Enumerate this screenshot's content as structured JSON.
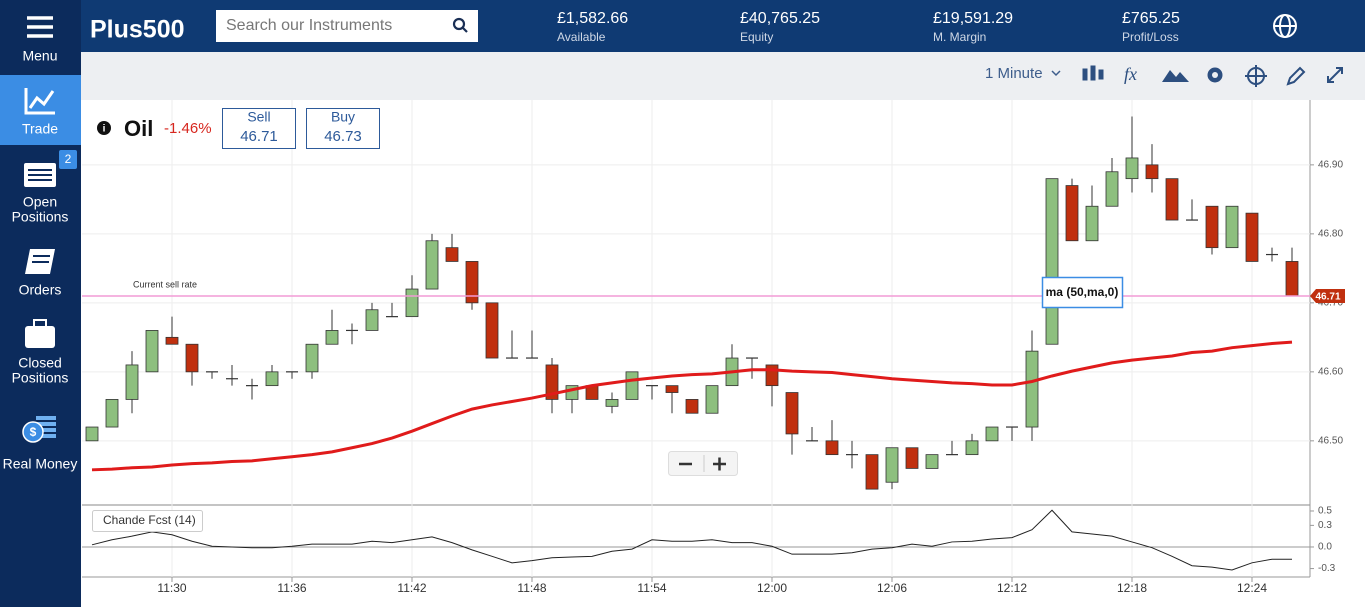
{
  "sidebar": {
    "items": [
      {
        "label": [
          "Menu"
        ]
      },
      {
        "label": [
          "Trade"
        ]
      },
      {
        "label": [
          "Open",
          "Positions"
        ],
        "badge": 2
      },
      {
        "label": [
          "Orders"
        ]
      },
      {
        "label": [
          "Closed",
          "Positions"
        ]
      },
      {
        "label": [
          "Real Money"
        ]
      }
    ]
  },
  "header": {
    "logo": "Plus500",
    "search_placeholder": "Search our Instruments",
    "stats": [
      {
        "value": "£1,582.66",
        "label": "Available"
      },
      {
        "value": "£40,765.25",
        "label": "Equity"
      },
      {
        "value": "£19,591.29",
        "label": "M. Margin"
      },
      {
        "value": "£765.25",
        "label": "Profit/Loss"
      }
    ]
  },
  "toolbar": {
    "timeframe": "1 Minute"
  },
  "instrument": {
    "name": "Oil",
    "change": "-1.46%",
    "sell": {
      "label": "Sell",
      "price": 46.71
    },
    "buy": {
      "label": "Buy",
      "price": 46.73
    }
  },
  "chart_data": [
    {
      "type": "candlestick",
      "categories": [
        null,
        null,
        null,
        null,
        "11:30",
        null,
        null,
        null,
        null,
        null,
        "11:36",
        null,
        null,
        null,
        null,
        null,
        "11:42",
        null,
        null,
        null,
        null,
        null,
        "11:48",
        null,
        null,
        null,
        null,
        null,
        "11:54",
        null,
        null,
        null,
        null,
        null,
        "12:00",
        null,
        null,
        null,
        null,
        null,
        "12:06",
        null,
        null,
        null,
        null,
        null,
        "12:12",
        null,
        null,
        null,
        null,
        null,
        "12:18",
        null,
        null,
        null,
        null,
        null,
        "12:24",
        null,
        null
      ],
      "open": [
        46.5,
        46.52,
        46.56,
        46.6,
        46.65,
        46.64,
        46.6,
        46.59,
        46.58,
        46.58,
        46.6,
        46.6,
        46.64,
        46.66,
        46.66,
        46.68,
        46.68,
        46.72,
        46.78,
        46.76,
        46.7,
        46.62,
        46.62,
        46.61,
        46.56,
        46.58,
        46.55,
        46.56,
        46.58,
        46.58,
        46.56,
        46.54,
        46.58,
        46.62,
        46.61,
        46.57,
        46.5,
        46.5,
        46.48,
        46.48,
        46.44,
        46.49,
        46.46,
        46.48,
        46.48,
        46.5,
        46.52,
        46.52,
        46.64,
        46.87,
        46.79,
        46.84,
        46.88,
        46.9,
        46.88,
        46.82,
        46.84,
        46.78,
        46.83,
        46.77,
        46.76
      ],
      "high": [
        46.52,
        46.56,
        46.63,
        46.66,
        46.68,
        46.64,
        46.6,
        46.61,
        46.59,
        46.61,
        46.6,
        46.64,
        46.69,
        46.67,
        46.7,
        46.7,
        46.74,
        46.8,
        46.8,
        46.76,
        46.7,
        46.66,
        46.66,
        46.62,
        46.58,
        46.58,
        46.57,
        46.6,
        46.58,
        46.58,
        46.56,
        46.58,
        46.64,
        46.62,
        46.61,
        46.57,
        46.52,
        46.53,
        46.5,
        46.48,
        46.49,
        46.49,
        46.48,
        46.5,
        46.51,
        46.52,
        46.52,
        46.66,
        46.88,
        46.88,
        46.87,
        46.91,
        46.97,
        46.93,
        46.88,
        46.85,
        46.84,
        46.84,
        46.83,
        46.78,
        46.78
      ],
      "low": [
        46.5,
        46.52,
        46.54,
        46.6,
        46.64,
        46.58,
        46.59,
        46.58,
        46.56,
        46.58,
        46.59,
        46.59,
        46.64,
        46.64,
        46.66,
        46.68,
        46.68,
        46.72,
        46.76,
        46.69,
        46.62,
        46.62,
        46.62,
        46.54,
        46.54,
        46.56,
        46.54,
        46.56,
        46.56,
        46.54,
        46.54,
        46.54,
        46.58,
        46.59,
        46.55,
        46.48,
        46.5,
        46.48,
        46.46,
        46.43,
        46.43,
        46.46,
        46.46,
        46.48,
        46.48,
        46.5,
        46.5,
        46.5,
        46.64,
        46.79,
        46.79,
        46.84,
        46.86,
        46.86,
        46.82,
        46.82,
        46.77,
        46.78,
        46.76,
        46.76,
        46.71
      ],
      "close": [
        46.52,
        46.56,
        46.61,
        46.66,
        46.64,
        46.6,
        46.6,
        46.59,
        46.58,
        46.6,
        46.6,
        46.64,
        46.66,
        46.66,
        46.69,
        46.68,
        46.72,
        46.79,
        46.76,
        46.7,
        46.62,
        46.62,
        46.62,
        46.56,
        46.58,
        46.56,
        46.56,
        46.6,
        46.58,
        46.57,
        46.54,
        46.58,
        46.62,
        46.62,
        46.58,
        46.51,
        46.5,
        46.48,
        46.48,
        46.43,
        46.49,
        46.46,
        46.48,
        46.48,
        46.5,
        46.52,
        46.52,
        46.63,
        46.88,
        46.79,
        46.84,
        46.89,
        46.91,
        46.88,
        46.82,
        46.82,
        46.78,
        46.84,
        46.76,
        46.77,
        46.71
      ],
      "up_color": "#8dbf7e",
      "down_color": "#c0300f",
      "overlays": [
        {
          "name": "ma (50,ma,0)",
          "color": "#e01b1b",
          "values": [
            46.458,
            46.459,
            46.461,
            46.462,
            46.465,
            46.467,
            46.468,
            46.47,
            46.471,
            46.474,
            46.477,
            46.48,
            46.484,
            46.49,
            46.496,
            46.504,
            46.514,
            46.525,
            46.536,
            46.546,
            46.552,
            46.557,
            46.562,
            46.568,
            46.574,
            46.58,
            46.584,
            46.588,
            46.591,
            46.594,
            46.596,
            46.597,
            46.6,
            46.603,
            46.603,
            46.601,
            46.6,
            46.599,
            46.596,
            46.593,
            46.59,
            46.588,
            46.586,
            46.584,
            46.583,
            46.581,
            46.581,
            46.586,
            46.594,
            46.601,
            46.607,
            46.613,
            46.617,
            46.62,
            46.623,
            46.628,
            46.63,
            46.635,
            46.638,
            46.641,
            46.643
          ]
        }
      ],
      "current_rate": {
        "label": "Current sell rate",
        "value": 46.71,
        "color": "#f29bd6"
      },
      "ylim": [
        46.407,
        46.994
      ],
      "yticks": [
        {
          "value": 46.5,
          "label": "46.50"
        },
        {
          "value": 46.6,
          "label": "46.60"
        },
        {
          "value": 46.7,
          "label": "46.70"
        },
        {
          "value": 46.8,
          "label": "46.80"
        },
        {
          "value": 46.9,
          "label": "46.90"
        }
      ],
      "grid": true
    },
    {
      "type": "line",
      "title": "Chande Fcst (14)",
      "color": "#222222",
      "values": [
        0.03,
        0.1,
        0.15,
        0.21,
        0.17,
        0.08,
        0.01,
        0,
        -0.01,
        -0.01,
        0.01,
        0.04,
        0.04,
        0.04,
        0.08,
        0.06,
        0.1,
        0.14,
        0.06,
        -0.04,
        -0.13,
        -0.22,
        -0.19,
        -0.15,
        -0.14,
        -0.13,
        -0.06,
        -0.03,
        0.1,
        0.08,
        0.08,
        0.1,
        0.06,
        0.06,
        0.01,
        -0.1,
        -0.1,
        -0.1,
        -0.08,
        -0.03,
        -0.01,
        0.04,
        0.01,
        0.07,
        0.08,
        0.11,
        0.13,
        0.24,
        0.51,
        0.21,
        0.18,
        0.15,
        0.07,
        -0.01,
        -0.13,
        -0.26,
        -0.28,
        -0.32,
        -0.22,
        -0.17,
        -0.17
      ],
      "ylim": [
        -0.417,
        0.583
      ],
      "yticks": [
        -0.3,
        {
          "value": 0,
          "label": "0.0"
        },
        0.3,
        0.5
      ]
    }
  ]
}
